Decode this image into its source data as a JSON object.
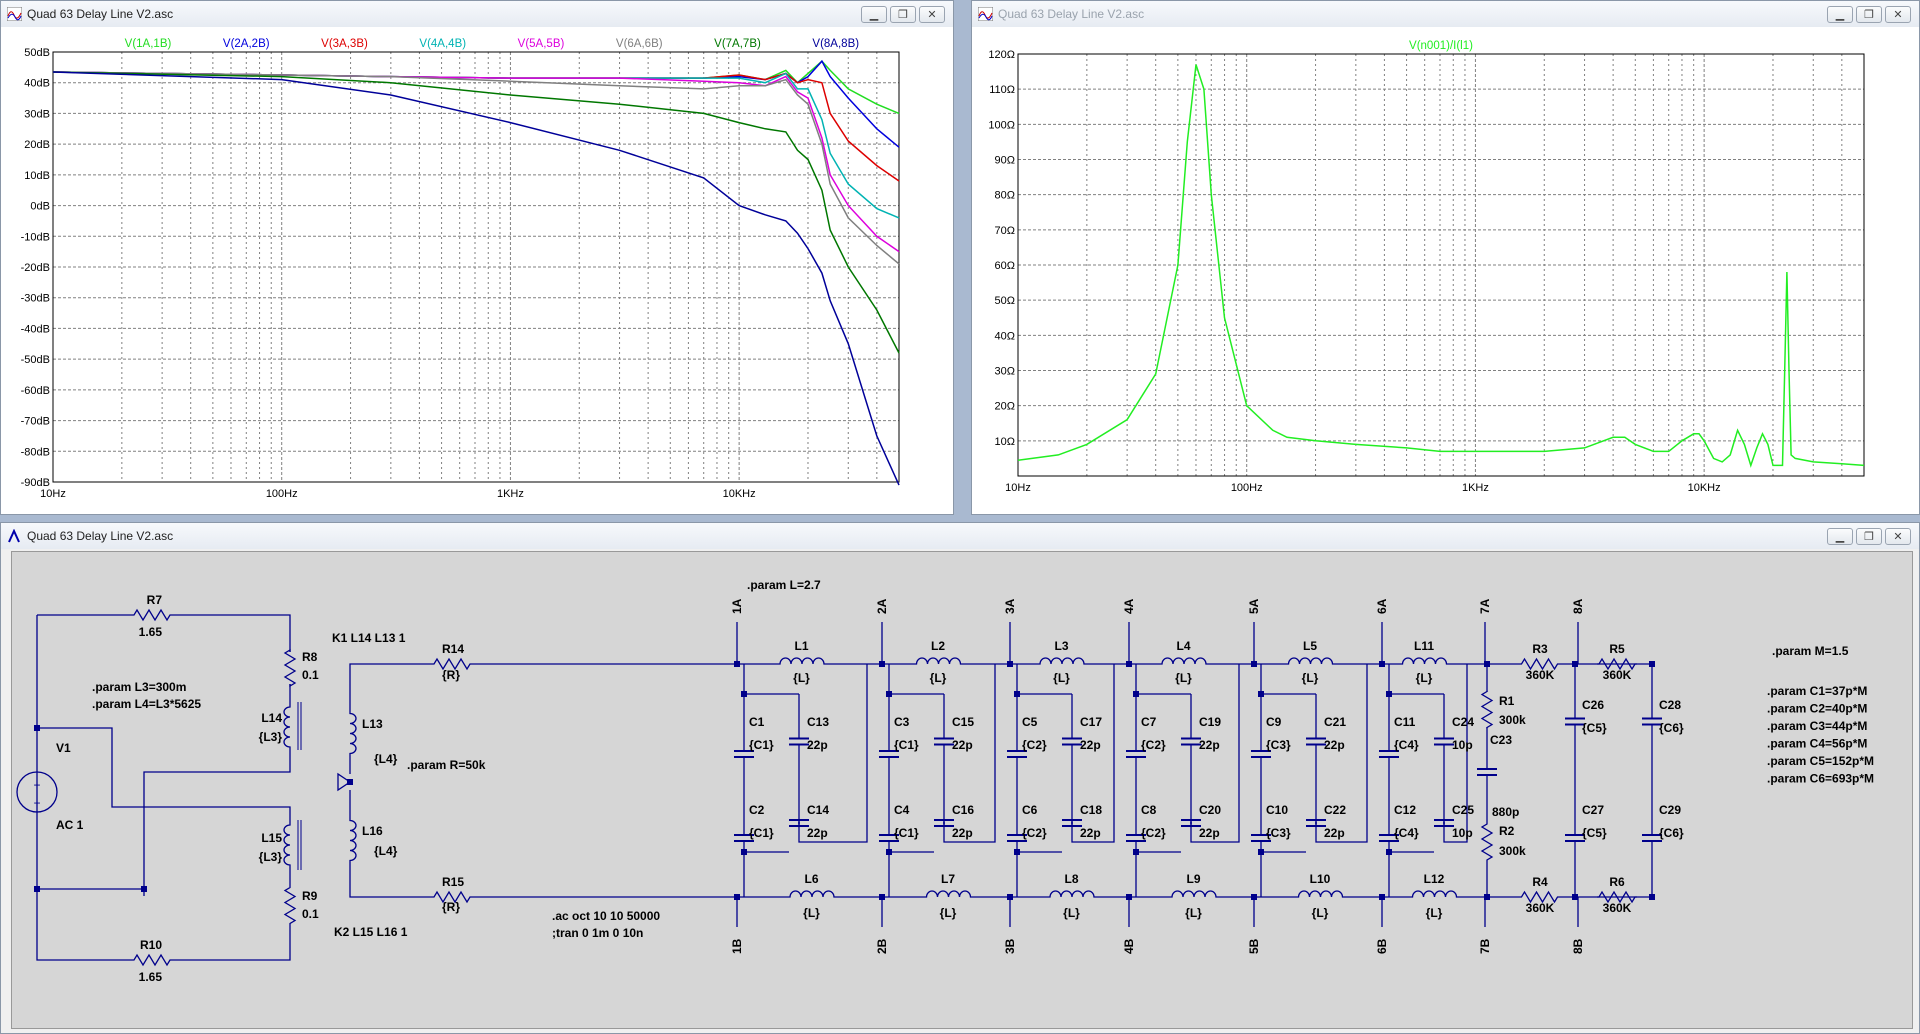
{
  "windows": {
    "left_plot": {
      "title": "Quad 63 Delay Line V2.asc"
    },
    "right_plot": {
      "title": "Quad 63 Delay Line V2.asc"
    },
    "schematic": {
      "title": "Quad 63 Delay Line V2.asc"
    }
  },
  "window_buttons": {
    "minimize": "▁",
    "restore": "❐",
    "close": "✕"
  },
  "colors": {
    "plot_background": "#ffffff",
    "schematic_background": "#d6d6d6",
    "wire": "#00008b",
    "grid": "#808080"
  },
  "chart_data": [
    {
      "type": "line",
      "x_scale": "log",
      "xlim": [
        10,
        50000
      ],
      "ylim": [
        -90,
        50
      ],
      "grid": true,
      "legend_placement": "top",
      "x_ticks": [
        "10Hz",
        "100Hz",
        "1KHz",
        "10KHz"
      ],
      "y_ticks": [
        "50dB",
        "40dB",
        "30dB",
        "20dB",
        "10dB",
        "0dB",
        "-10dB",
        "-20dB",
        "-30dB",
        "-40dB",
        "-50dB",
        "-60dB",
        "-70dB",
        "-80dB",
        "-90dB"
      ],
      "series": [
        {
          "name": "V(1A,1B)",
          "color": "#22dd22",
          "x": [
            10,
            100,
            300,
            1000,
            3000,
            7000,
            10000,
            13000,
            16000,
            18000,
            20000,
            23000,
            25000,
            30000,
            40000,
            50000
          ],
          "values": [
            43.5,
            42.5,
            42,
            41.5,
            41.5,
            41.5,
            42.5,
            41,
            44,
            40,
            43,
            47,
            44,
            38,
            33,
            30
          ]
        },
        {
          "name": "V(2A,2B)",
          "color": "#0000dd",
          "x": [
            10,
            100,
            300,
            1000,
            3000,
            7000,
            10000,
            13000,
            16000,
            18000,
            20000,
            23000,
            25000,
            30000,
            40000,
            50000
          ],
          "values": [
            43.5,
            42.5,
            42,
            41.5,
            41.5,
            41.5,
            42,
            41,
            43,
            40,
            42,
            47,
            42,
            35,
            25,
            19
          ]
        },
        {
          "name": "V(3A,3B)",
          "color": "#dd0000",
          "x": [
            10,
            100,
            300,
            1000,
            3000,
            7000,
            10000,
            13000,
            16000,
            18000,
            20000,
            23000,
            25000,
            30000,
            40000,
            50000
          ],
          "values": [
            43.5,
            42.5,
            42,
            41.5,
            41.5,
            41.5,
            42.5,
            41,
            43,
            40,
            41,
            40,
            30,
            21,
            13,
            8
          ]
        },
        {
          "name": "V(4A,4B)",
          "color": "#00b3b3",
          "x": [
            10,
            100,
            300,
            1000,
            3000,
            7000,
            10000,
            13000,
            16000,
            18000,
            20000,
            23000,
            25000,
            30000,
            40000,
            50000
          ],
          "values": [
            43.5,
            42.5,
            42,
            41.5,
            41.5,
            41.5,
            41.5,
            40,
            43,
            38,
            38,
            28,
            17,
            7,
            -1,
            -4
          ]
        },
        {
          "name": "V(5A,5B)",
          "color": "#dd00dd",
          "x": [
            10,
            100,
            300,
            1000,
            3000,
            7000,
            10000,
            13000,
            16000,
            18000,
            20000,
            23000,
            25000,
            30000,
            40000,
            50000
          ],
          "values": [
            43.5,
            42.5,
            42,
            41.5,
            41.5,
            40.5,
            40,
            39,
            42,
            37,
            35,
            22,
            10,
            0,
            -10,
            -15
          ]
        },
        {
          "name": "V(6A,6B)",
          "color": "#808080",
          "x": [
            10,
            100,
            300,
            1000,
            3000,
            7000,
            10000,
            13000,
            16000,
            18000,
            20000,
            23000,
            25000,
            30000,
            40000,
            50000
          ],
          "values": [
            43.5,
            42.5,
            42,
            40.5,
            39,
            38,
            39,
            39,
            41,
            36,
            33,
            20,
            7,
            -4,
            -13,
            -19
          ]
        },
        {
          "name": "V(7A,7B)",
          "color": "#007700",
          "x": [
            10,
            100,
            300,
            1000,
            3000,
            7000,
            10000,
            13000,
            16000,
            18000,
            20000,
            23000,
            25000,
            30000,
            40000,
            50000
          ],
          "values": [
            43.5,
            42,
            40,
            36,
            33,
            30,
            27,
            25,
            24,
            18,
            15,
            5,
            -8,
            -20,
            -34,
            -48
          ]
        },
        {
          "name": "V(8A,8B)",
          "color": "#000099",
          "x": [
            10,
            100,
            300,
            1000,
            3000,
            7000,
            10000,
            13000,
            16000,
            18000,
            20000,
            23000,
            25000,
            30000,
            40000,
            50000
          ],
          "values": [
            43.5,
            41,
            36,
            27,
            18,
            9,
            0,
            -3,
            -5,
            -9,
            -14,
            -22,
            -31,
            -45,
            -75,
            -91
          ]
        }
      ]
    },
    {
      "type": "line",
      "x_scale": "log",
      "xlim": [
        10,
        50000
      ],
      "ylim": [
        0,
        120
      ],
      "grid": true,
      "legend_placement": "top",
      "x_ticks": [
        "10Hz",
        "100Hz",
        "1KHz",
        "10KHz"
      ],
      "y_ticks": [
        "120Ω",
        "110Ω",
        "100Ω",
        "90Ω",
        "80Ω",
        "70Ω",
        "60Ω",
        "50Ω",
        "40Ω",
        "30Ω",
        "20Ω",
        "10Ω"
      ],
      "series": [
        {
          "name": "V(n001)/I(l1)",
          "color": "#22ee22",
          "x": [
            10,
            15,
            20,
            30,
            40,
            50,
            55,
            60,
            65,
            70,
            80,
            100,
            130,
            150,
            200,
            300,
            500,
            700,
            1000,
            2000,
            3000,
            4000,
            4500,
            5000,
            6000,
            7000,
            8000,
            9000,
            9500,
            10000,
            11000,
            12000,
            13000,
            14000,
            15000,
            16000,
            17000,
            18000,
            19000,
            20000,
            21000,
            22000,
            22500,
            23000,
            23500,
            24000,
            25000,
            30000,
            40000,
            50000
          ],
          "values": [
            4.5,
            6,
            9,
            16,
            29,
            60,
            95,
            117,
            110,
            80,
            45,
            20,
            13,
            11,
            10,
            9,
            8,
            7,
            7,
            7,
            8,
            11,
            11,
            9,
            7,
            7,
            10,
            12,
            12,
            10,
            5,
            4,
            6,
            13,
            9,
            3,
            8,
            12,
            9,
            3,
            3,
            3,
            30,
            58,
            30,
            6,
            5,
            4,
            3.5,
            3
          ]
        }
      ]
    }
  ],
  "schematic": {
    "params": {
      "L": ".param L=2.7",
      "L3_L4": [
        ".param L3=300m",
        ".param L4=L3*5625"
      ],
      "R": ".param R=50k",
      "M": ".param M=1.5",
      "C_list": [
        ".param C1=37p*M",
        ".param C2=40p*M",
        ".param C3=44p*M",
        ".param C4=56p*M",
        ".param C5=152p*M",
        ".param C6=693p*M"
      ]
    },
    "analysis": [
      ".ac oct 10 10 50000",
      ";tran 0 1m 0 10n"
    ],
    "couplings": [
      "K1 L14 L13 1",
      "K2 L15 L16 1"
    ],
    "source": {
      "name": "V1",
      "value": "AC 1"
    },
    "components": [
      {
        "ref": "R7",
        "value": "1.65"
      },
      {
        "ref": "R8",
        "value": "0.1"
      },
      {
        "ref": "L14",
        "value": "{L3}"
      },
      {
        "ref": "L15",
        "value": "{L3}"
      },
      {
        "ref": "R9",
        "value": "0.1"
      },
      {
        "ref": "R10",
        "value": "1.65"
      },
      {
        "ref": "L13",
        "value": "{L4}"
      },
      {
        "ref": "L16",
        "value": "{L4}"
      },
      {
        "ref": "R14",
        "value": "{R}"
      },
      {
        "ref": "R15",
        "value": "{R}"
      },
      {
        "ref": "L1",
        "value": "{L}"
      },
      {
        "ref": "L2",
        "value": "{L}"
      },
      {
        "ref": "L3",
        "value": "{L}"
      },
      {
        "ref": "L4",
        "value": "{L}"
      },
      {
        "ref": "L5",
        "value": "{L}"
      },
      {
        "ref": "L11",
        "value": "{L}"
      },
      {
        "ref": "L6",
        "value": "{L}"
      },
      {
        "ref": "L7",
        "value": "{L}"
      },
      {
        "ref": "L8",
        "value": "{L}"
      },
      {
        "ref": "L9",
        "value": "{L}"
      },
      {
        "ref": "L10",
        "value": "{L}"
      },
      {
        "ref": "L12",
        "value": "{L}"
      },
      {
        "ref": "C1",
        "value": "{C1}"
      },
      {
        "ref": "C2",
        "value": "{C1}"
      },
      {
        "ref": "C13",
        "value": "22p"
      },
      {
        "ref": "C14",
        "value": "22p"
      },
      {
        "ref": "C3",
        "value": "{C1}"
      },
      {
        "ref": "C4",
        "value": "{C1}"
      },
      {
        "ref": "C15",
        "value": "22p"
      },
      {
        "ref": "C16",
        "value": "22p"
      },
      {
        "ref": "C5",
        "value": "{C2}"
      },
      {
        "ref": "C6",
        "value": "{C2}"
      },
      {
        "ref": "C17",
        "value": "22p"
      },
      {
        "ref": "C18",
        "value": "22p"
      },
      {
        "ref": "C7",
        "value": "{C2}"
      },
      {
        "ref": "C8",
        "value": "{C2}"
      },
      {
        "ref": "C19",
        "value": "22p"
      },
      {
        "ref": "C20",
        "value": "22p"
      },
      {
        "ref": "C9",
        "value": "{C3}"
      },
      {
        "ref": "C10",
        "value": "{C3}"
      },
      {
        "ref": "C21",
        "value": "22p"
      },
      {
        "ref": "C22",
        "value": "22p"
      },
      {
        "ref": "C11",
        "value": "{C4}"
      },
      {
        "ref": "C12",
        "value": "{C4}"
      },
      {
        "ref": "C24",
        "value": "10p"
      },
      {
        "ref": "C25",
        "value": "10p"
      },
      {
        "ref": "R1",
        "value": "300k"
      },
      {
        "ref": "C23",
        "value": "880p"
      },
      {
        "ref": "R2",
        "value": "300k"
      },
      {
        "ref": "R3",
        "value": "360K"
      },
      {
        "ref": "R5",
        "value": "360K"
      },
      {
        "ref": "R4",
        "value": "360K"
      },
      {
        "ref": "R6",
        "value": "360K"
      },
      {
        "ref": "C26",
        "value": "{C5}"
      },
      {
        "ref": "C27",
        "value": "{C5}"
      },
      {
        "ref": "C28",
        "value": "{C6}"
      },
      {
        "ref": "C29",
        "value": "{C6}"
      }
    ],
    "nodes_top": [
      "1A",
      "2A",
      "3A",
      "4A",
      "5A",
      "6A",
      "7A",
      "8A"
    ],
    "nodes_bottom": [
      "1B",
      "2B",
      "3B",
      "4B",
      "5B",
      "6B",
      "7B",
      "8B"
    ]
  }
}
